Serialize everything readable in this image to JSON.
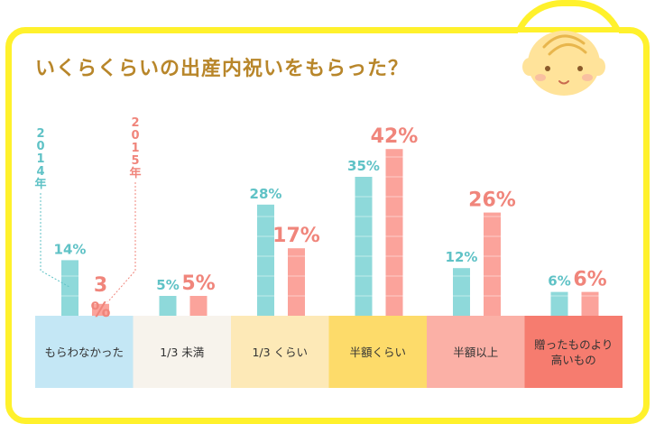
{
  "title": "いくらくらいの出産内祝いをもらった？",
  "chart_data": {
    "type": "bar",
    "categories": [
      "もらわなかった",
      "1/3 未満",
      "1/3 くらい",
      "半額くらい",
      "半額以上",
      "贈ったものより高いもの"
    ],
    "series": [
      {
        "name": "2014年",
        "values": [
          14,
          5,
          28,
          35,
          12,
          6
        ],
        "labels": [
          "14%",
          "5%",
          "28%",
          "35%",
          "12%",
          "6%"
        ]
      },
      {
        "name": "2015年",
        "values": [
          3,
          5,
          17,
          42,
          26,
          6
        ],
        "labels": [
          "3%",
          "5%",
          "17%",
          "42%",
          "26%",
          "6%"
        ]
      }
    ],
    "ylim": [
      0,
      45
    ],
    "legend_position": "left, vertical callouts"
  },
  "colors": {
    "frame": "#fff12c",
    "title": "#b8862a",
    "series_2014": "#8ed9da",
    "series_2015": "#fba39b",
    "category_bg": [
      "#c4e7f5",
      "#f7f3ec",
      "#fde9b7",
      "#fddb6a",
      "#fbb0a6",
      "#f67c6f"
    ]
  },
  "icons": {
    "mascot": "baby-face-icon"
  }
}
